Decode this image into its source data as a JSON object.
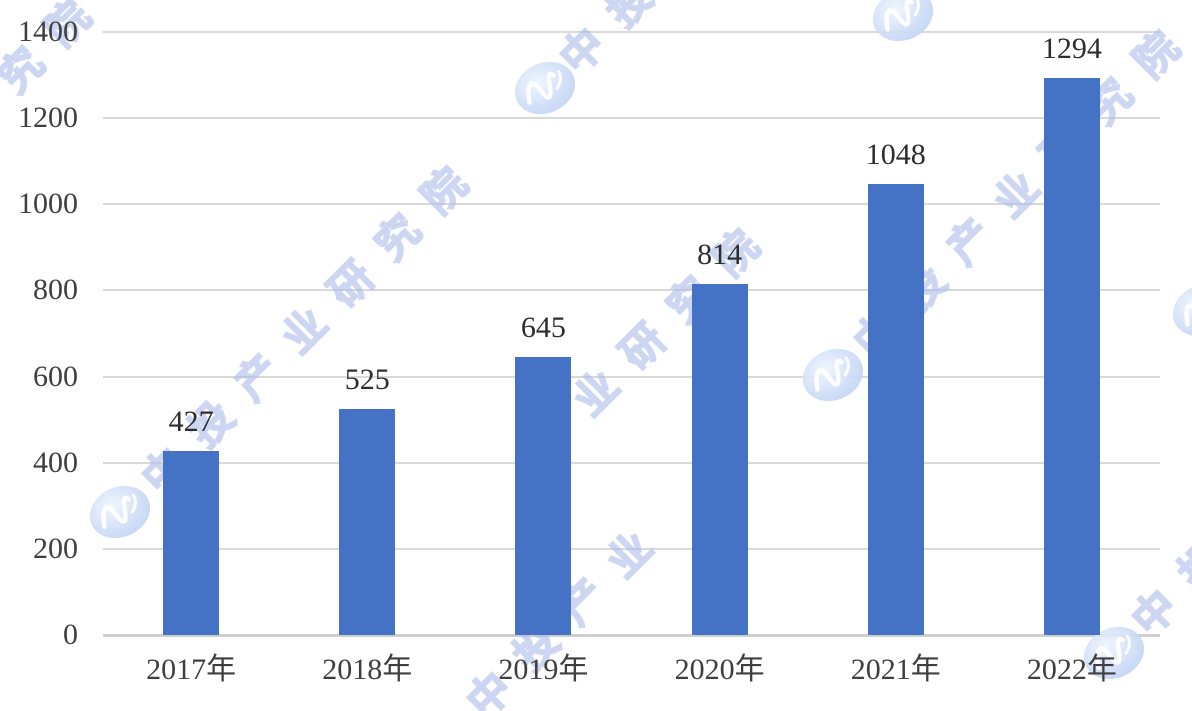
{
  "chart_data": {
    "type": "bar",
    "categories": [
      "2017年",
      "2018年",
      "2019年",
      "2020年",
      "2021年",
      "2022年"
    ],
    "values": [
      427,
      525,
      645,
      814,
      1048,
      1294
    ],
    "yticks": [
      0,
      200,
      400,
      600,
      800,
      1000,
      1200,
      1400
    ],
    "ylim": [
      0,
      1400
    ],
    "ytick_step": 200,
    "xlabel": "",
    "ylabel": "",
    "grid": true,
    "legend": "none",
    "data_labels_shown": true,
    "colors": {
      "bar": "#4472c4",
      "gridline": "#d9d9d9",
      "axis_line": "#cfcfcf",
      "tick_label": "#3f3f3f",
      "value_label": "#2d2d2d",
      "background": "#ffffff"
    }
  },
  "watermark": {
    "text": "中投产业研究院",
    "logo_name": "zw-oval-logo",
    "text_outline_color": "#a9b9e8",
    "logo_fill_color": "#cfdef7",
    "logo_glyph_color": "#ffffff"
  }
}
